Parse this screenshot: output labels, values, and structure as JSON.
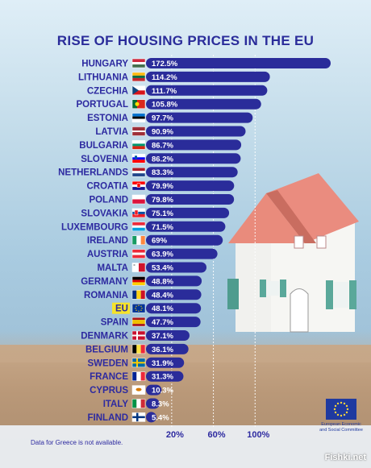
{
  "title": "RISE OF HOUSING PRICES IN THE EU",
  "footnote": "Data for Greece is not available.",
  "logo_text": [
    "European Economic",
    "and Social Committee"
  ],
  "watermark": "Fishki.net",
  "colors": {
    "bar": "#2a2c9a",
    "title": "#2a2c9a",
    "highlight": "#f6e32a"
  },
  "chart_data": {
    "type": "bar",
    "orientation": "horizontal",
    "categories": [
      "HUNGARY",
      "LITHUANIA",
      "CZECHIA",
      "PORTUGAL",
      "ESTONIA",
      "LATVIA",
      "BULGARIA",
      "SLOVENIA",
      "NETHERLANDS",
      "CROATIA",
      "POLAND",
      "SLOVAKIA",
      "LUXEMBOURG",
      "IRELAND",
      "AUSTRIA",
      "MALTA",
      "GERMANY",
      "ROMANIA",
      "EU",
      "SPAIN",
      "DENMARK",
      "BELGIUM",
      "SWEDEN",
      "FRANCE",
      "CYPRUS",
      "ITALY",
      "FINLAND"
    ],
    "values": [
      172.5,
      114.2,
      111.7,
      105.8,
      97.7,
      90.9,
      86.7,
      86.2,
      83.3,
      79.9,
      79.8,
      75.1,
      71.5,
      69,
      63.9,
      53.4,
      48.8,
      48.4,
      48.1,
      47.7,
      37.1,
      36.1,
      31.9,
      31.3,
      10.3,
      8.3,
      5.4
    ],
    "labels": [
      "172.5%",
      "114.2%",
      "111.7%",
      "105.8%",
      "97.7%",
      "90.9%",
      "86.7%",
      "86.2%",
      "83.3%",
      "79.9%",
      "79.8%",
      "75.1%",
      "71.5%",
      "69%",
      "63.9%",
      "53.4%",
      "48.8%",
      "48.4%",
      "48.1%",
      "47.7%",
      "37.1%",
      "36.1%",
      "31.9%",
      "31.3%",
      "10.3%",
      "8.3%",
      "5.4%"
    ],
    "highlight": "EU",
    "flags": [
      "hungary",
      "lithuania",
      "czechia",
      "portugal",
      "estonia",
      "latvia",
      "bulgaria",
      "slovenia",
      "netherlands",
      "croatia",
      "poland",
      "slovakia",
      "luxembourg",
      "ireland",
      "austria",
      "malta",
      "germany",
      "romania",
      "eu",
      "spain",
      "denmark",
      "belgium",
      "sweden",
      "france",
      "cyprus",
      "italy",
      "finland"
    ],
    "ticks": [
      20,
      60,
      100
    ],
    "tick_labels": [
      "20%",
      "60%",
      "100%"
    ],
    "xlim": [
      0,
      180
    ],
    "grid": true
  }
}
